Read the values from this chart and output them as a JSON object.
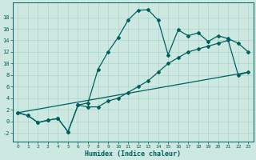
{
  "xlabel": "Humidex (Indice chaleur)",
  "xlim": [
    -0.5,
    23.5
  ],
  "ylim": [
    -3.5,
    20.5
  ],
  "xticks": [
    0,
    1,
    2,
    3,
    4,
    5,
    6,
    7,
    8,
    9,
    10,
    11,
    12,
    13,
    14,
    15,
    16,
    17,
    18,
    19,
    20,
    21,
    22,
    23
  ],
  "yticks": [
    -2,
    0,
    2,
    4,
    6,
    8,
    10,
    12,
    14,
    16,
    18
  ],
  "bg_color": "#cce8e0",
  "line_color": "#006060",
  "grid_color": "#aad4cc",
  "curve1_x": [
    0,
    1,
    2,
    3,
    4,
    5,
    6,
    7,
    8,
    9,
    10,
    11,
    12,
    13,
    14,
    15,
    16,
    17,
    18,
    19,
    20,
    21,
    22,
    23
  ],
  "curve1_y": [
    1.5,
    1.0,
    -0.2,
    0.2,
    0.5,
    -1.8,
    2.8,
    3.2,
    9.0,
    12.0,
    14.5,
    17.5,
    19.2,
    19.3,
    17.5,
    11.5,
    15.8,
    14.8,
    15.3,
    13.8,
    14.8,
    14.3,
    13.5,
    12.0
  ],
  "curve2_x": [
    0,
    1,
    2,
    3,
    4,
    5,
    6,
    7,
    8,
    9,
    10,
    11,
    12,
    13,
    14,
    15,
    16,
    17,
    18,
    19,
    20,
    21,
    22,
    23
  ],
  "curve2_y": [
    1.5,
    1.0,
    -0.2,
    0.2,
    0.5,
    -1.8,
    2.8,
    2.5,
    2.5,
    3.5,
    4.0,
    5.0,
    6.0,
    7.0,
    8.5,
    10.0,
    11.0,
    12.0,
    12.5,
    13.0,
    13.5,
    14.0,
    8.0,
    8.5
  ],
  "curve3_x": [
    0,
    23
  ],
  "curve3_y": [
    1.5,
    8.5
  ]
}
